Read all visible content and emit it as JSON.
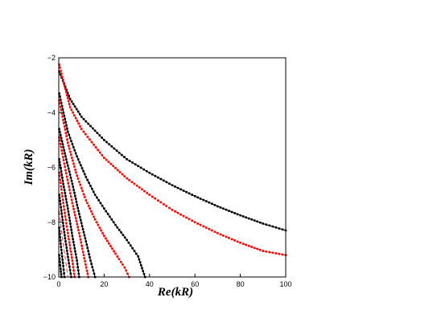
{
  "chart_data": {
    "type": "scatter",
    "xlabel": "Re(kR)",
    "ylabel": "Im(kR)",
    "xlim": [
      0,
      100
    ],
    "ylim": [
      -10,
      -2
    ],
    "x_ticks": [
      0,
      20,
      40,
      60,
      80,
      100
    ],
    "y_ticks": [
      -10,
      -8,
      -6,
      -4,
      -2
    ],
    "grid": false,
    "series": [
      {
        "color": "#000000",
        "style": "markers",
        "points": [
          [
            0.2,
            -2.5
          ],
          [
            5,
            -3.5
          ],
          [
            10,
            -4.15
          ],
          [
            20,
            -5.0
          ],
          [
            30,
            -5.7
          ],
          [
            40,
            -6.2
          ],
          [
            50,
            -6.65
          ],
          [
            60,
            -7.05
          ],
          [
            70,
            -7.42
          ],
          [
            80,
            -7.75
          ],
          [
            90,
            -8.05
          ],
          [
            100,
            -8.3
          ]
        ]
      },
      {
        "color": "#000000",
        "style": "line",
        "points": [
          [
            0.2,
            -2.5
          ],
          [
            5,
            -3.5
          ],
          [
            10,
            -4.15
          ],
          [
            20,
            -5.0
          ],
          [
            30,
            -5.7
          ],
          [
            40,
            -6.2
          ],
          [
            50,
            -6.65
          ],
          [
            60,
            -7.05
          ],
          [
            70,
            -7.42
          ],
          [
            80,
            -7.75
          ],
          [
            90,
            -8.05
          ],
          [
            100,
            -8.3
          ]
        ]
      },
      {
        "color": "#ff0000",
        "style": "markers",
        "points": [
          [
            0.2,
            -2.25
          ],
          [
            5,
            -3.8
          ],
          [
            10,
            -4.6
          ],
          [
            20,
            -5.65
          ],
          [
            30,
            -6.4
          ],
          [
            40,
            -7.0
          ],
          [
            50,
            -7.55
          ],
          [
            60,
            -8.0
          ],
          [
            70,
            -8.4
          ],
          [
            80,
            -8.75
          ],
          [
            90,
            -9.05
          ],
          [
            100,
            -9.2
          ]
        ]
      },
      {
        "color": "#ff0000",
        "style": "dashed-line",
        "points": [
          [
            0.2,
            -2.25
          ],
          [
            5,
            -3.8
          ],
          [
            10,
            -4.6
          ],
          [
            20,
            -5.65
          ],
          [
            30,
            -6.4
          ],
          [
            40,
            -7.0
          ],
          [
            50,
            -7.55
          ],
          [
            60,
            -8.0
          ],
          [
            70,
            -8.4
          ],
          [
            80,
            -8.75
          ],
          [
            90,
            -9.05
          ],
          [
            100,
            -9.2
          ]
        ]
      },
      {
        "color": "#000000",
        "style": "markers",
        "points": [
          [
            0.2,
            -3.3
          ],
          [
            4,
            -4.7
          ],
          [
            8,
            -5.6
          ],
          [
            12,
            -6.35
          ],
          [
            16,
            -7.0
          ],
          [
            20,
            -7.5
          ],
          [
            25,
            -8.1
          ],
          [
            30,
            -8.65
          ],
          [
            35,
            -9.25
          ],
          [
            38,
            -10.0
          ]
        ]
      },
      {
        "color": "#000000",
        "style": "line",
        "points": [
          [
            0.2,
            -3.3
          ],
          [
            4,
            -4.7
          ],
          [
            8,
            -5.6
          ],
          [
            12,
            -6.35
          ],
          [
            16,
            -7.0
          ],
          [
            20,
            -7.5
          ],
          [
            25,
            -8.1
          ],
          [
            30,
            -8.65
          ],
          [
            35,
            -9.25
          ],
          [
            38,
            -10.0
          ]
        ]
      },
      {
        "color": "#ff0000",
        "style": "markers",
        "points": [
          [
            0.2,
            -3.55
          ],
          [
            4,
            -5.1
          ],
          [
            8,
            -6.3
          ],
          [
            12,
            -7.2
          ],
          [
            16,
            -7.9
          ],
          [
            20,
            -8.5
          ],
          [
            25,
            -9.15
          ],
          [
            29,
            -9.65
          ],
          [
            31,
            -10.0
          ]
        ]
      },
      {
        "color": "#ff0000",
        "style": "dashed-line",
        "points": [
          [
            0.2,
            -3.55
          ],
          [
            4,
            -5.1
          ],
          [
            8,
            -6.3
          ],
          [
            12,
            -7.2
          ],
          [
            16,
            -7.9
          ],
          [
            20,
            -8.5
          ],
          [
            25,
            -9.15
          ],
          [
            29,
            -9.65
          ],
          [
            31,
            -10.0
          ]
        ]
      },
      {
        "color": "#000000",
        "style": "markers",
        "points": [
          [
            0.2,
            -4.6
          ],
          [
            3,
            -5.6
          ],
          [
            6,
            -6.6
          ],
          [
            9,
            -7.7
          ],
          [
            12,
            -8.7
          ],
          [
            14,
            -9.4
          ],
          [
            16,
            -10.0
          ]
        ]
      },
      {
        "color": "#000000",
        "style": "line",
        "points": [
          [
            0.2,
            -4.6
          ],
          [
            3,
            -5.6
          ],
          [
            6,
            -6.6
          ],
          [
            9,
            -7.7
          ],
          [
            12,
            -8.7
          ],
          [
            14,
            -9.4
          ],
          [
            16,
            -10.0
          ]
        ]
      },
      {
        "color": "#ff0000",
        "style": "markers",
        "points": [
          [
            0.2,
            -4.9
          ],
          [
            3,
            -6.1
          ],
          [
            6,
            -7.3
          ],
          [
            9,
            -8.4
          ],
          [
            11,
            -9.2
          ],
          [
            13,
            -10.0
          ]
        ]
      },
      {
        "color": "#ff0000",
        "style": "dashed-line",
        "points": [
          [
            0.2,
            -4.9
          ],
          [
            3,
            -6.1
          ],
          [
            6,
            -7.3
          ],
          [
            9,
            -8.4
          ],
          [
            11,
            -9.2
          ],
          [
            13,
            -10.0
          ]
        ]
      },
      {
        "color": "#000000",
        "style": "markers",
        "points": [
          [
            0.2,
            -5.7
          ],
          [
            2,
            -6.6
          ],
          [
            4,
            -7.5
          ],
          [
            6,
            -8.5
          ],
          [
            8,
            -9.4
          ],
          [
            9,
            -10.0
          ]
        ]
      },
      {
        "color": "#000000",
        "style": "line",
        "points": [
          [
            0.2,
            -5.7
          ],
          [
            2,
            -6.6
          ],
          [
            4,
            -7.5
          ],
          [
            6,
            -8.5
          ],
          [
            8,
            -9.4
          ],
          [
            9,
            -10.0
          ]
        ]
      },
      {
        "color": "#ff0000",
        "style": "markers",
        "points": [
          [
            0.2,
            -6.2
          ],
          [
            2,
            -7.3
          ],
          [
            4,
            -8.4
          ],
          [
            6,
            -9.4
          ],
          [
            7,
            -10.0
          ]
        ]
      },
      {
        "color": "#ff0000",
        "style": "dashed-line",
        "points": [
          [
            0.2,
            -6.2
          ],
          [
            2,
            -7.3
          ],
          [
            4,
            -8.4
          ],
          [
            6,
            -9.4
          ],
          [
            7,
            -10.0
          ]
        ]
      },
      {
        "color": "#000000",
        "style": "markers",
        "points": [
          [
            0.2,
            -7.0
          ],
          [
            1.5,
            -7.8
          ],
          [
            3,
            -8.7
          ],
          [
            4.5,
            -9.5
          ],
          [
            5.5,
            -10.0
          ]
        ]
      },
      {
        "color": "#000000",
        "style": "line",
        "points": [
          [
            0.2,
            -7.0
          ],
          [
            1.5,
            -7.8
          ],
          [
            3,
            -8.7
          ],
          [
            4.5,
            -9.5
          ],
          [
            5.5,
            -10.0
          ]
        ]
      },
      {
        "color": "#ff0000",
        "style": "dashed-line",
        "points": [
          [
            0.2,
            -7.6
          ],
          [
            1.5,
            -8.5
          ],
          [
            3,
            -9.4
          ],
          [
            4,
            -10.0
          ]
        ]
      },
      {
        "color": "#000000",
        "style": "markers",
        "points": [
          [
            0.2,
            -8.2
          ],
          [
            1,
            -8.9
          ],
          [
            2,
            -9.6
          ],
          [
            2.5,
            -10.0
          ]
        ]
      },
      {
        "color": "#000000",
        "style": "line",
        "points": [
          [
            0.2,
            -8.2
          ],
          [
            1,
            -8.9
          ],
          [
            2,
            -9.6
          ],
          [
            2.5,
            -10.0
          ]
        ]
      },
      {
        "color": "#000000",
        "style": "markers",
        "points": [
          [
            0.2,
            -9.2
          ],
          [
            0.8,
            -9.7
          ],
          [
            1.2,
            -10.0
          ]
        ]
      },
      {
        "color": "#000000",
        "style": "line",
        "points": [
          [
            0.2,
            -9.2
          ],
          [
            0.8,
            -9.7
          ],
          [
            1.2,
            -10.0
          ]
        ]
      }
    ]
  }
}
